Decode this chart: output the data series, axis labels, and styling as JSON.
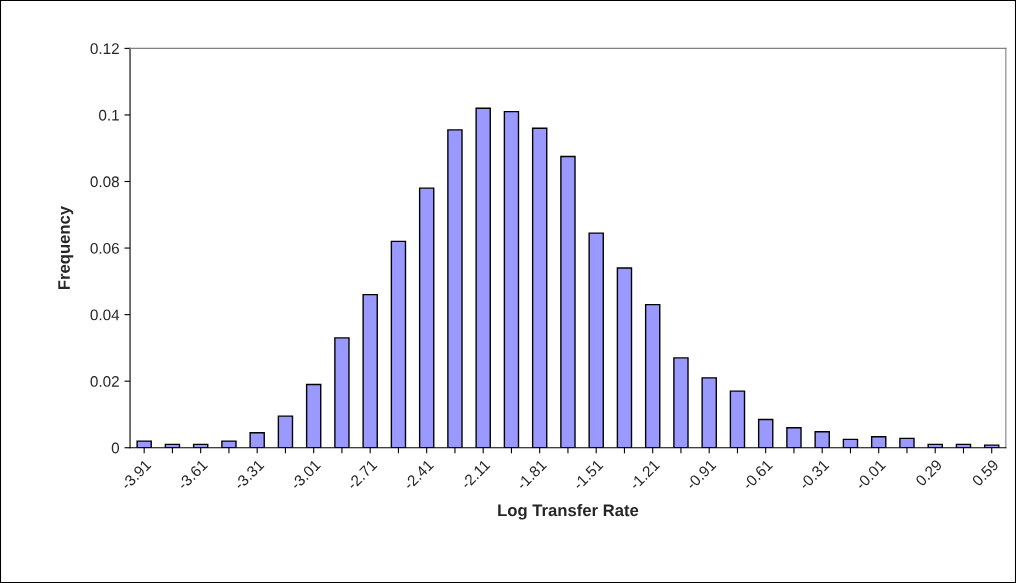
{
  "chart_data": {
    "type": "bar",
    "xlabel": "Log Transfer Rate",
    "ylabel": "Frequency",
    "categories": [
      "-3.91",
      null,
      "-3.61",
      null,
      "-3.31",
      null,
      "-3.01",
      null,
      "-2.71",
      null,
      "-2.41",
      null,
      "-2.11",
      null,
      "-1.81",
      null,
      "-1.51",
      null,
      "-1.21",
      null,
      "-0.91",
      null,
      "-0.61",
      null,
      "-0.31",
      null,
      "-0.01",
      null,
      "0.29",
      null,
      "0.59"
    ],
    "values": [
      0.002,
      0.001,
      0.001,
      0.002,
      0.0045,
      0.0095,
      0.019,
      0.033,
      0.046,
      0.062,
      0.078,
      0.0955,
      0.102,
      0.101,
      0.096,
      0.0875,
      0.0645,
      0.054,
      0.043,
      0.027,
      0.021,
      0.017,
      0.0085,
      0.006,
      0.0048,
      0.0025,
      0.0033,
      0.0028,
      0.001,
      0.001,
      0.0008
    ],
    "color": "#9999ff",
    "ylim": [
      0,
      0.12
    ],
    "yticks": [
      0,
      0.02,
      0.04,
      0.06,
      0.08,
      0.1,
      0.12
    ],
    "grid": false,
    "legend": false
  }
}
